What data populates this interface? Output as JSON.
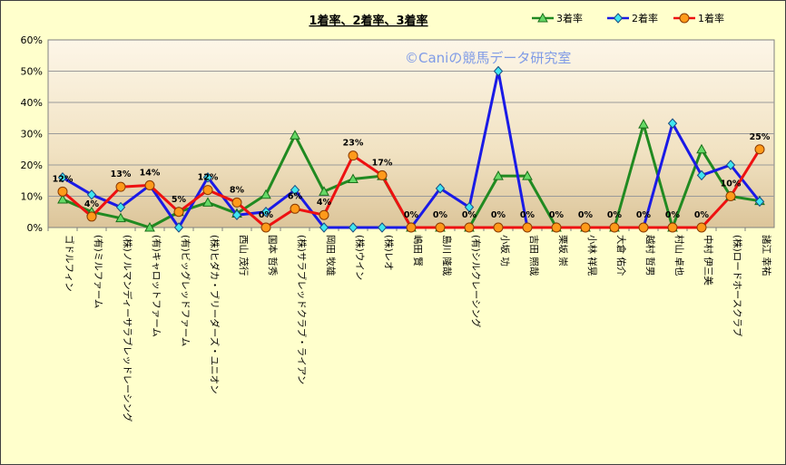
{
  "chart_data": {
    "type": "line",
    "title": "1着率、2着率、3着率",
    "watermark": "©Caniの競馬データ研究室",
    "ylim": [
      0,
      60
    ],
    "yticks": [
      "0%",
      "10%",
      "20%",
      "30%",
      "40%",
      "50%",
      "60%"
    ],
    "grid": true,
    "legend_position": "top-right",
    "categories": [
      "ゴドルフィン",
      "(有)ミルファーム",
      "(株)ノルマンディーサラブレッドレーシング",
      "(有)キャロットファーム",
      "(有)ビッグレッドファーム",
      "(株)ヒダカ・ブリーダーズ・ユニオン",
      "西山 茂行",
      "国本 哲秀",
      "(株)サラブレッドクラブ・ライアン",
      "岡田 牧雄",
      "(株)ウイン",
      "(株)レオ",
      "嶋田 賢",
      "島川 隆哉",
      "(有)シルクレーシング",
      "小坂 功",
      "吉田 照哉",
      "栗坂 崇",
      "小林 祥晃",
      "大倉 佑介",
      "越村 哲男",
      "村山 卓也",
      "中村 伊三美",
      "(株)ロードホースクラブ",
      "諸江 幸祐"
    ],
    "series": [
      {
        "name": "3着率",
        "color": "#218a21",
        "marker": "triangle",
        "values": [
          9,
          5,
          3,
          0,
          5,
          8,
          4.5,
          10.5,
          29.5,
          11.5,
          15.5,
          16.5,
          0,
          0,
          0,
          16.5,
          16.5,
          0,
          0,
          0,
          33,
          0,
          25,
          10,
          8.5
        ]
      },
      {
        "name": "2着率",
        "color": "#1a1ae6",
        "marker": "diamond",
        "values": [
          16,
          10.5,
          6.5,
          13.5,
          0,
          16,
          4,
          5,
          12,
          0,
          0,
          0,
          0,
          12.5,
          6.5,
          50,
          0,
          0,
          0,
          0,
          0,
          33.3,
          16.7,
          20,
          8.3
        ]
      },
      {
        "name": "1着率",
        "color": "#ee1111",
        "marker": "circle",
        "values": [
          11.5,
          3.5,
          13,
          13.5,
          5,
          12,
          8,
          0,
          6,
          4,
          23,
          16.7,
          0,
          0,
          0,
          0,
          0,
          0,
          0,
          0,
          0,
          0,
          0,
          10,
          25
        ]
      }
    ],
    "data_labels": [
      "12%",
      "4%",
      "13%",
      "14%",
      "5%",
      "12%",
      "8%",
      "0%",
      "6%",
      "4%",
      "23%",
      "17%",
      "0%",
      "0%",
      "0%",
      "0%",
      "0%",
      "0%",
      "0%",
      "0%",
      "0%",
      "0%",
      "0%",
      "10%",
      "25%"
    ]
  }
}
